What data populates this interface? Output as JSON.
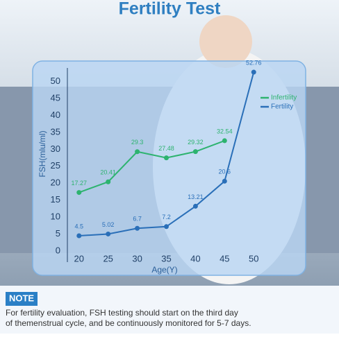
{
  "chart_data": {
    "type": "line",
    "title": "Fertility Test",
    "x": [
      20,
      25,
      30,
      35,
      40,
      45,
      50
    ],
    "series": [
      {
        "name": "Infertility",
        "color": "#2db36f",
        "values": [
          17.27,
          20.41,
          29.3,
          27.48,
          29.32,
          32.54,
          null
        ]
      },
      {
        "name": "Fertility",
        "color": "#2a6fb8",
        "values": [
          4.5,
          5.02,
          6.7,
          7.2,
          13.21,
          20.6,
          52.76
        ]
      }
    ],
    "xlim": [
      18,
      52
    ],
    "xticks": [
      20,
      25,
      30,
      35,
      40,
      45,
      50
    ],
    "ylim": [
      0,
      54
    ],
    "yticks": [
      0,
      5,
      10,
      15,
      20,
      25,
      30,
      35,
      40,
      45,
      50
    ],
    "xlabel": "Age(Y)",
    "ylabel": "FSH(mlu/ml)",
    "legend": "top-right"
  },
  "note": {
    "label": "NOTE",
    "lines": [
      "For fertility evaluation, FSH testing should start on the third day",
      "of themenstrual cycle, and be continuously monitored for 5-7 days."
    ]
  }
}
